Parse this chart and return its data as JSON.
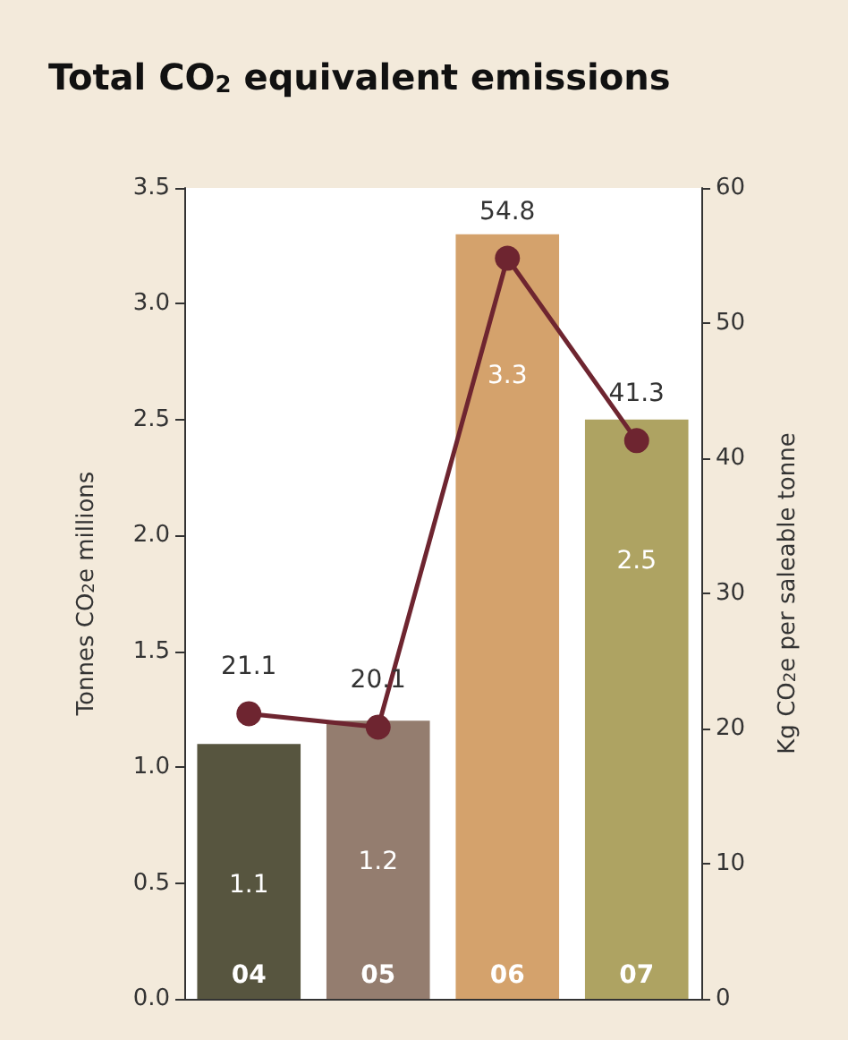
{
  "chart_data": {
    "type": "bar",
    "title": "Total CO$_{2}$ equivalent emissions",
    "ylabel": "Tonnes CO$_{2}$e millions",
    "y2label": "Kg CO$_{2}$e per saleable tonne",
    "categories": [
      "04",
      "05",
      "06",
      "07"
    ],
    "series": [
      {
        "colors": [
          "#57553f",
          "#947d6f",
          "#d4a26c",
          "#aea362"
        ],
        "values": [
          1.1,
          1.2,
          3.3,
          2.5
        ]
      },
      {
        "type": "line",
        "axis": "y2",
        "color": "#6e2530",
        "values": [
          21.1,
          20.1,
          54.8,
          41.3
        ],
        "marker": "circle",
        "line_style": "solid"
      }
    ],
    "ylim": [
      0,
      3.5
    ],
    "yticks": [
      {
        "value": 0,
        "label": "0.0"
      },
      0.5,
      {
        "value": 1,
        "label": "1.0"
      },
      1.5,
      {
        "value": 2,
        "label": "2.0"
      },
      2.5,
      {
        "value": 3,
        "label": "3.0"
      },
      3.5
    ],
    "y2lim": [
      0,
      60
    ],
    "y2ticks": [
      0,
      10,
      20,
      30,
      40,
      50,
      60
    ],
    "data_labels": true,
    "grid": false
  }
}
